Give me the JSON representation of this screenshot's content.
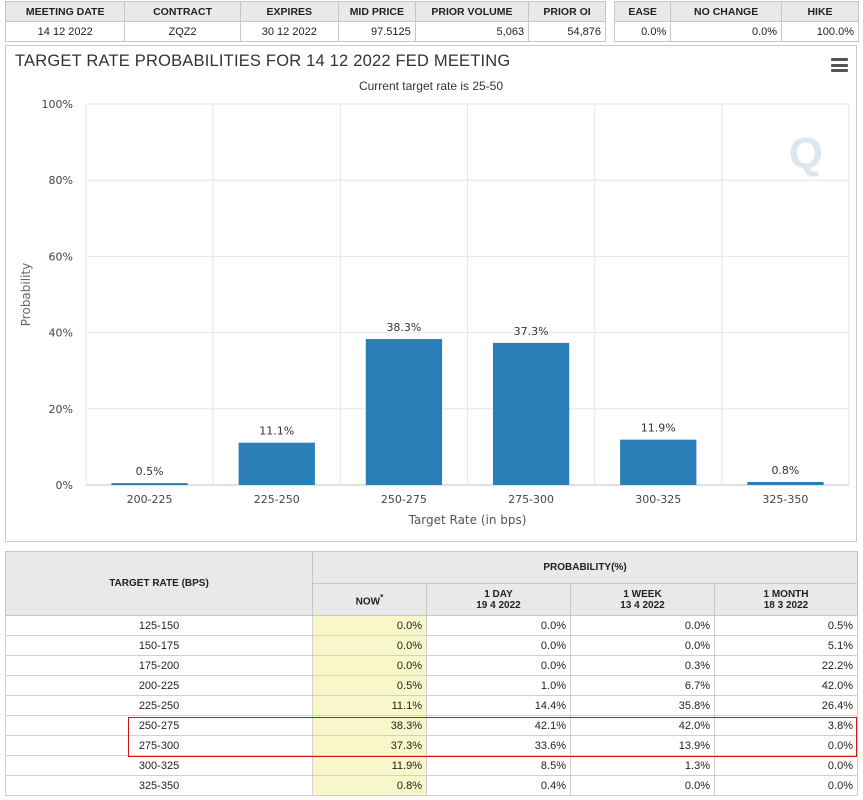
{
  "summary": {
    "headers": [
      "MEETING DATE",
      "CONTRACT",
      "EXPIRES",
      "MID PRICE",
      "PRIOR VOLUME",
      "PRIOR OI"
    ],
    "values": [
      "14 12 2022",
      "ZQZ2",
      "30 12 2022",
      "97.5125",
      "5,063",
      "54,876"
    ]
  },
  "outcome": {
    "headers": [
      "EASE",
      "NO CHANGE",
      "HIKE"
    ],
    "values": [
      "0.0%",
      "0.0%",
      "100.0%"
    ]
  },
  "chart": {
    "title": "TARGET RATE PROBABILITIES FOR 14 12 2022 FED MEETING",
    "subtitle": "Current target rate is 25-50",
    "watermark": "Q",
    "bar_color": "#2b7fb8"
  },
  "chart_data": {
    "type": "bar",
    "categories": [
      "200-225",
      "225-250",
      "250-275",
      "275-300",
      "300-325",
      "325-350"
    ],
    "values": [
      0.5,
      11.1,
      38.3,
      37.3,
      11.9,
      0.8
    ],
    "data_labels": [
      "0.5%",
      "11.1%",
      "38.3%",
      "37.3%",
      "11.9%",
      "0.8%"
    ],
    "xlabel": "Target Rate (in bps)",
    "ylabel": "Probability",
    "ylim": [
      0,
      100
    ],
    "yticks": [
      0,
      20,
      40,
      60,
      80,
      100
    ],
    "ytick_labels": [
      "0%",
      "20%",
      "40%",
      "60%",
      "80%",
      "100%"
    ],
    "grid": true
  },
  "prob_table": {
    "rate_header": "TARGET RATE (BPS)",
    "group_header": "PROBABILITY(%)",
    "now_label": "NOW",
    "now_mark": "*",
    "day_label": "1 DAY",
    "day_date": "19 4 2022",
    "week_label": "1 WEEK",
    "week_date": "13 4 2022",
    "month_label": "1 MONTH",
    "month_date": "18 3 2022",
    "rows": [
      {
        "rate": "125-150",
        "now": "0.0%",
        "day": "0.0%",
        "week": "0.0%",
        "month": "0.5%"
      },
      {
        "rate": "150-175",
        "now": "0.0%",
        "day": "0.0%",
        "week": "0.0%",
        "month": "5.1%"
      },
      {
        "rate": "175-200",
        "now": "0.0%",
        "day": "0.0%",
        "week": "0.3%",
        "month": "22.2%"
      },
      {
        "rate": "200-225",
        "now": "0.5%",
        "day": "1.0%",
        "week": "6.7%",
        "month": "42.0%"
      },
      {
        "rate": "225-250",
        "now": "11.1%",
        "day": "14.4%",
        "week": "35.8%",
        "month": "26.4%"
      },
      {
        "rate": "250-275",
        "now": "38.3%",
        "day": "42.1%",
        "week": "42.0%",
        "month": "3.8%"
      },
      {
        "rate": "275-300",
        "now": "37.3%",
        "day": "33.6%",
        "week": "13.9%",
        "month": "0.0%"
      },
      {
        "rate": "300-325",
        "now": "11.9%",
        "day": "8.5%",
        "week": "1.3%",
        "month": "0.0%"
      },
      {
        "rate": "325-350",
        "now": "0.8%",
        "day": "0.4%",
        "week": "0.0%",
        "month": "0.0%"
      }
    ]
  }
}
